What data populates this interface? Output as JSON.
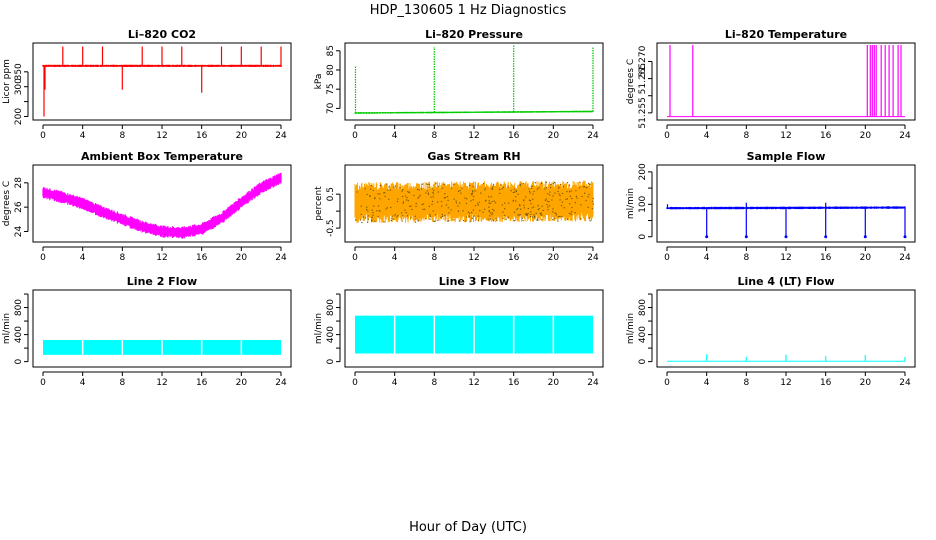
{
  "figure": {
    "title": "HDP_130605  1 Hz Diagnostics",
    "xlabel": "Hour of Day (UTC)"
  },
  "chart_data": [
    {
      "id": "co2",
      "type": "line",
      "title": "Li–820 CO2",
      "ylabel": "Licor ppm",
      "color": "#ff0000",
      "x_ticks": [
        0,
        4,
        8,
        12,
        16,
        20,
        24
      ],
      "xlim": [
        0,
        24
      ],
      "y_ticks": [
        200,
        250,
        300,
        350
      ],
      "y_tick_labels": [
        "200",
        "",
        "300",
        "350"
      ],
      "ylim": [
        195,
        440
      ],
      "style": "band",
      "baseline": [
        [
          0,
          370
        ],
        [
          24,
          370
        ]
      ],
      "band_halfwidth": 4,
      "spikes": [
        [
          0.1,
          200
        ],
        [
          0.2,
          290
        ],
        [
          2,
          435
        ],
        [
          4,
          435
        ],
        [
          6,
          435
        ],
        [
          8,
          290
        ],
        [
          10,
          435
        ],
        [
          12,
          435
        ],
        [
          14,
          435
        ],
        [
          16,
          280
        ],
        [
          18,
          435
        ],
        [
          20,
          435
        ],
        [
          22,
          435
        ],
        [
          24,
          435
        ]
      ]
    },
    {
      "id": "pressure",
      "type": "line",
      "title": "Li–820 Pressure",
      "ylabel": "kPa",
      "color": "#00cc00",
      "x_ticks": [
        0,
        4,
        8,
        12,
        16,
        20,
        24
      ],
      "xlim": [
        0,
        24
      ],
      "y_ticks": [
        70,
        75,
        80,
        85
      ],
      "y_tick_labels": [
        "70",
        "75",
        "80",
        "85"
      ],
      "ylim": [
        67.5,
        86.5
      ],
      "style": "dotted",
      "baseline": [
        [
          0,
          68.8
        ],
        [
          24,
          69.2
        ]
      ],
      "band_halfwidth": 0.2,
      "spikes": [
        [
          0.05,
          81
        ],
        [
          8,
          86
        ],
        [
          16,
          86.5
        ],
        [
          24,
          86
        ]
      ]
    },
    {
      "id": "licor_temp",
      "type": "line",
      "title": "Li–820 Temperature",
      "ylabel": "degrees C",
      "color": "#ff00ff",
      "x_ticks": [
        0,
        4,
        8,
        12,
        16,
        20,
        24
      ],
      "xlim": [
        0,
        24
      ],
      "y_ticks": [
        51.255,
        51.26,
        51.265,
        51.27
      ],
      "y_tick_labels": [
        "51.255",
        "",
        "51.265",
        "51.270"
      ],
      "ylim": [
        51.2535,
        51.2748
      ],
      "style": "band",
      "baseline": [
        [
          0,
          51.2539
        ],
        [
          24,
          51.2539
        ]
      ],
      "band_halfwidth": 0,
      "spikes": [
        [
          0.3,
          51.2748
        ],
        [
          2.6,
          51.2748
        ],
        [
          20.2,
          51.2748
        ],
        [
          20.5,
          51.2748
        ],
        [
          20.7,
          51.2748
        ],
        [
          20.9,
          51.2748
        ],
        [
          21.1,
          51.2748
        ],
        [
          21.6,
          51.2748
        ],
        [
          22.0,
          51.2748
        ],
        [
          22.4,
          51.2748
        ],
        [
          22.8,
          51.2748
        ],
        [
          23.3,
          51.2748
        ],
        [
          23.6,
          51.2748
        ]
      ]
    },
    {
      "id": "ambient_temp",
      "type": "line",
      "title": "Ambient Box Temperature",
      "ylabel": "degrees C",
      "color": "#ff00ff",
      "x_ticks": [
        0,
        4,
        8,
        12,
        16,
        20,
        24
      ],
      "xlim": [
        0,
        24
      ],
      "y_ticks": [
        24,
        26,
        28
      ],
      "y_tick_labels": [
        "24",
        "26",
        "28"
      ],
      "ylim": [
        23.3,
        29.3
      ],
      "style": "band",
      "baseline": [
        [
          0,
          27.2
        ],
        [
          2,
          26.8
        ],
        [
          4,
          26.3
        ],
        [
          6,
          25.6
        ],
        [
          8,
          25.0
        ],
        [
          10,
          24.4
        ],
        [
          12,
          24.0
        ],
        [
          14,
          23.9
        ],
        [
          16,
          24.2
        ],
        [
          18,
          25.1
        ],
        [
          20,
          26.4
        ],
        [
          22,
          27.6
        ],
        [
          24,
          28.4
        ]
      ],
      "band_halfwidth": 0.5,
      "spikes": []
    },
    {
      "id": "gas_rh",
      "type": "line",
      "title": "Gas Stream RH",
      "ylabel": "percent",
      "color": "#ffa500",
      "x_ticks": [
        0,
        4,
        8,
        12,
        16,
        20,
        24
      ],
      "xlim": [
        0,
        24
      ],
      "y_ticks": [
        -0.5,
        0.0,
        0.5
      ],
      "y_tick_labels": [
        "-0.5",
        "",
        "0.5"
      ],
      "ylim": [
        -0.85,
        1.3
      ],
      "style": "noise",
      "baseline": [
        [
          0,
          0.25
        ],
        [
          24,
          0.3
        ]
      ],
      "band_halfwidth": 0.55,
      "spikes": []
    },
    {
      "id": "sample_flow",
      "type": "line",
      "title": "Sample Flow",
      "ylabel": "ml/min",
      "color": "#0000ff",
      "x_ticks": [
        0,
        4,
        8,
        12,
        16,
        20,
        24
      ],
      "xlim": [
        0,
        24
      ],
      "y_ticks": [
        0,
        50,
        100,
        150,
        200
      ],
      "y_tick_labels": [
        "0",
        "",
        "100",
        "",
        "200"
      ],
      "ylim": [
        -10,
        215
      ],
      "style": "band",
      "baseline": [
        [
          0,
          88
        ],
        [
          24,
          90
        ]
      ],
      "band_halfwidth": 4,
      "spikes": [
        [
          0.05,
          100
        ],
        [
          4,
          0
        ],
        [
          8,
          0
        ],
        [
          12,
          0
        ],
        [
          16,
          0
        ],
        [
          20,
          0
        ],
        [
          24,
          0
        ],
        [
          8,
          105
        ],
        [
          16,
          105
        ]
      ]
    },
    {
      "id": "line2_flow",
      "type": "line",
      "title": "Line 2 Flow",
      "ylabel": "ml/min",
      "color": "#00ffff",
      "x_ticks": [
        0,
        4,
        8,
        12,
        16,
        20,
        24
      ],
      "xlim": [
        0,
        24
      ],
      "y_ticks": [
        0,
        200,
        400,
        600,
        800,
        1000
      ],
      "y_tick_labels": [
        "0",
        "",
        "400",
        "",
        "800",
        ""
      ],
      "ylim": [
        -50,
        1030
      ],
      "style": "block",
      "baseline": [
        [
          0,
          210
        ],
        [
          24,
          210
        ]
      ],
      "band_halfwidth": 110,
      "spikes": [
        [
          4,
          0
        ],
        [
          8,
          0
        ],
        [
          12,
          0
        ],
        [
          16,
          0
        ],
        [
          20,
          0
        ]
      ]
    },
    {
      "id": "line3_flow",
      "type": "line",
      "title": "Line 3 Flow",
      "ylabel": "ml/min",
      "color": "#00ffff",
      "x_ticks": [
        0,
        4,
        8,
        12,
        16,
        20,
        24
      ],
      "xlim": [
        0,
        24
      ],
      "y_ticks": [
        0,
        200,
        400,
        600,
        800,
        1000
      ],
      "y_tick_labels": [
        "0",
        "",
        "400",
        "",
        "800",
        ""
      ],
      "ylim": [
        -50,
        1030
      ],
      "style": "block",
      "baseline": [
        [
          0,
          400
        ],
        [
          24,
          400
        ]
      ],
      "band_halfwidth": 280,
      "spikes": [
        [
          4,
          0
        ],
        [
          8,
          0
        ],
        [
          12,
          0
        ],
        [
          16,
          0
        ],
        [
          20,
          0
        ]
      ]
    },
    {
      "id": "line4_flow",
      "type": "line",
      "title": "Line 4 (LT) Flow",
      "ylabel": "ml/min",
      "color": "#00ffff",
      "x_ticks": [
        0,
        4,
        8,
        12,
        16,
        20,
        24
      ],
      "xlim": [
        0,
        24
      ],
      "y_ticks": [
        0,
        200,
        400,
        600,
        800,
        1000
      ],
      "y_tick_labels": [
        "0",
        "",
        "400",
        "",
        "800",
        ""
      ],
      "ylim": [
        -50,
        1030
      ],
      "style": "band",
      "baseline": [
        [
          0,
          5
        ],
        [
          24,
          5
        ]
      ],
      "band_halfwidth": 0,
      "spikes": [
        [
          4,
          110
        ],
        [
          8,
          70
        ],
        [
          12,
          105
        ],
        [
          16,
          80
        ],
        [
          20,
          100
        ],
        [
          24,
          70
        ]
      ]
    }
  ]
}
